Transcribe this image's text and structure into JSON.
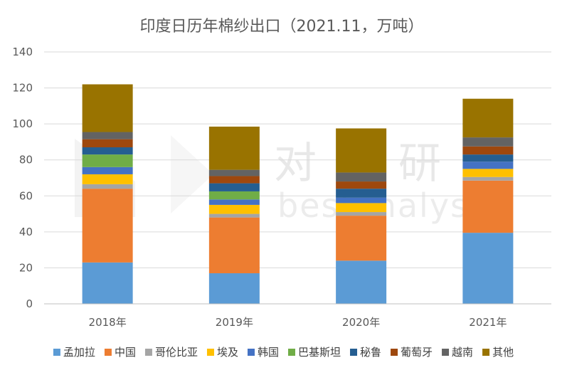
{
  "watermark": {
    "cn_left": "对",
    "cn_right": "研",
    "en": "bestanalyst"
  },
  "chart_data": {
    "type": "bar",
    "stacked": true,
    "title": "印度日历年棉纱出口（2021.11，万吨）",
    "xlabel": "",
    "ylabel": "",
    "ylim": [
      0,
      140
    ],
    "yticks": [
      0,
      20,
      40,
      60,
      80,
      100,
      120,
      140
    ],
    "grid": true,
    "legend_position": "bottom",
    "categories": [
      "2018年",
      "2019年",
      "2020年",
      "2021年"
    ],
    "series": [
      {
        "name": "孟加拉",
        "color": "#5b9bd5",
        "values": [
          23,
          17,
          24,
          39.5
        ]
      },
      {
        "name": "中国",
        "color": "#ed7d31",
        "values": [
          41,
          31,
          25,
          29
        ]
      },
      {
        "name": "哥伦比亚",
        "color": "#a5a5a5",
        "values": [
          2.5,
          2,
          2,
          2
        ]
      },
      {
        "name": "埃及",
        "color": "#ffc000",
        "values": [
          5.5,
          5,
          5,
          4.5
        ]
      },
      {
        "name": "韩国",
        "color": "#4472c4",
        "values": [
          4,
          3,
          3,
          4
        ]
      },
      {
        "name": "巴基斯坦",
        "color": "#70ad47",
        "values": [
          7,
          4.5,
          0,
          0
        ]
      },
      {
        "name": "秘鲁",
        "color": "#255e91",
        "values": [
          4,
          4.5,
          5,
          4
        ]
      },
      {
        "name": "葡萄牙",
        "color": "#9e480e",
        "values": [
          4.5,
          4,
          4,
          4.5
        ]
      },
      {
        "name": "越南",
        "color": "#636363",
        "values": [
          4,
          3.5,
          5,
          5
        ]
      },
      {
        "name": "其他",
        "color": "#997300",
        "values": [
          26.5,
          24,
          24.5,
          21.5
        ]
      }
    ]
  }
}
